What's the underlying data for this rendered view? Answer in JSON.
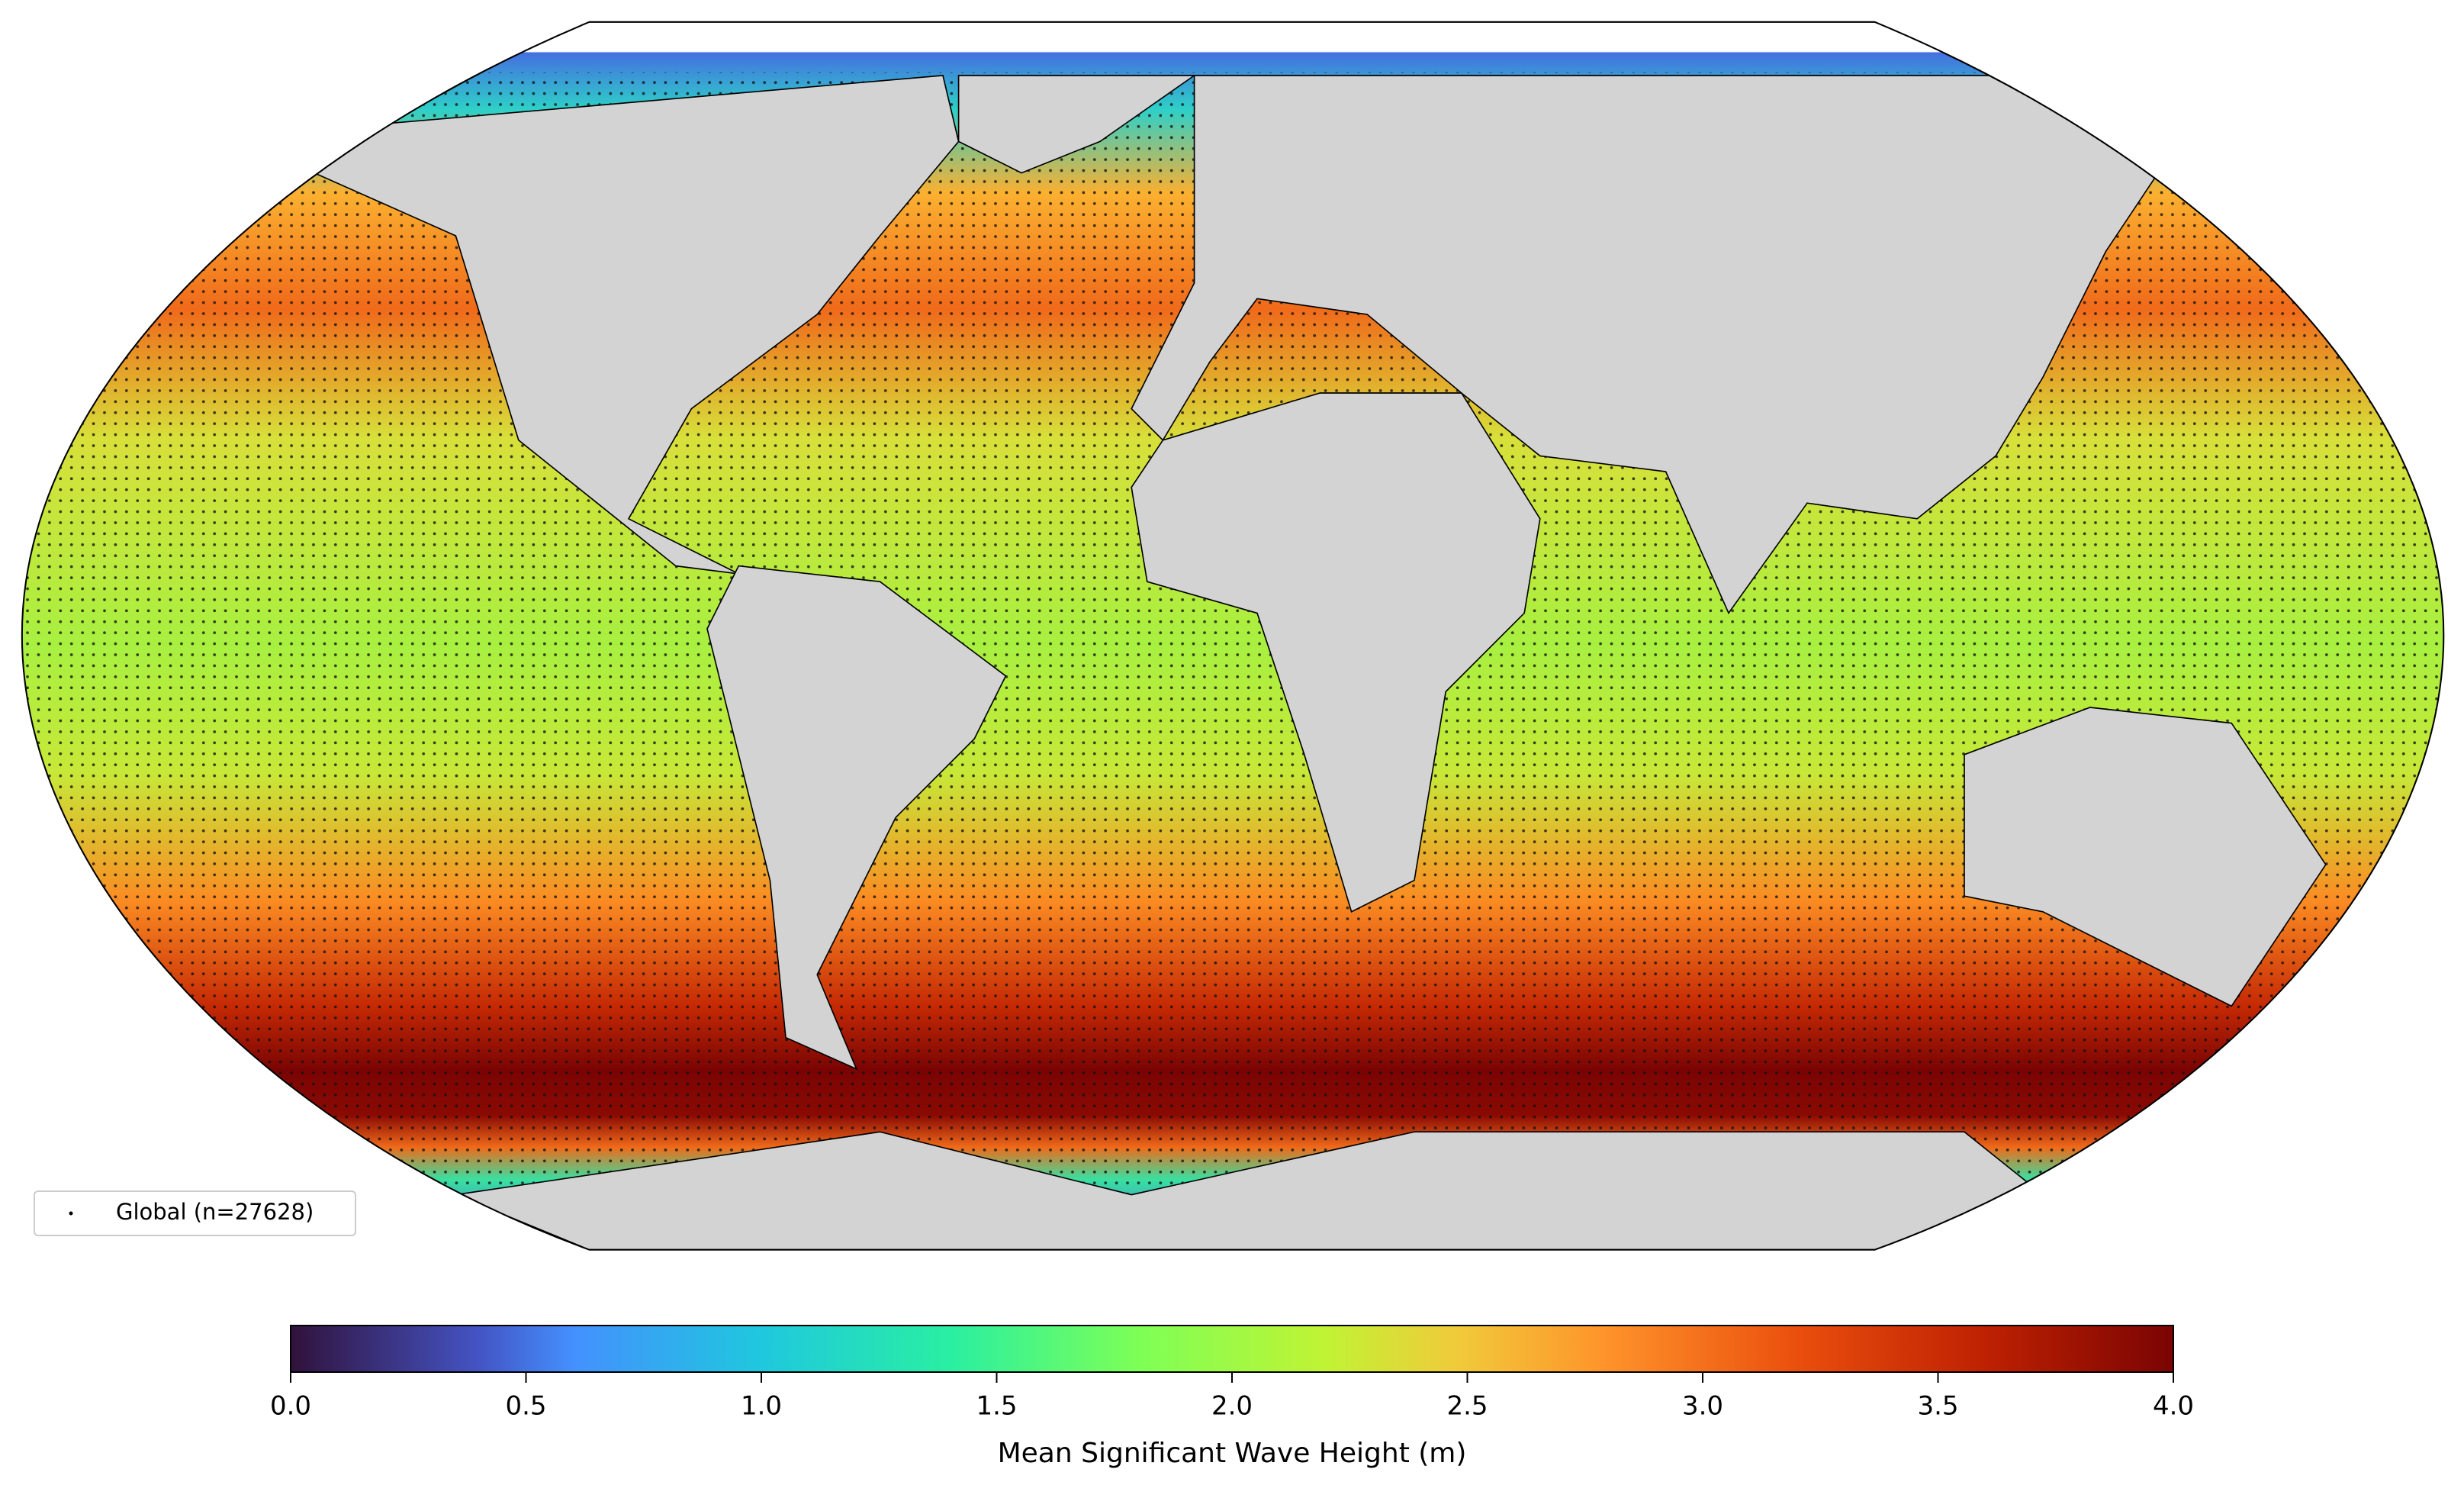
{
  "legend": {
    "label": "Global (n=27628)"
  },
  "colorbar": {
    "label": "Mean Significant Wave Height (m)",
    "lim": [
      0,
      4
    ],
    "ticks": [
      {
        "value": 0,
        "label": "0.0"
      },
      {
        "value": 0.5,
        "label": "0.5"
      },
      {
        "value": 1,
        "label": "1.0"
      },
      {
        "value": 1.5,
        "label": "1.5"
      },
      {
        "value": 2,
        "label": "2.0"
      },
      {
        "value": 2.5,
        "label": "2.5"
      },
      {
        "value": 3,
        "label": "3.0"
      },
      {
        "value": 3.5,
        "label": "3.5"
      },
      {
        "value": 4,
        "label": "4.0"
      }
    ]
  }
}
